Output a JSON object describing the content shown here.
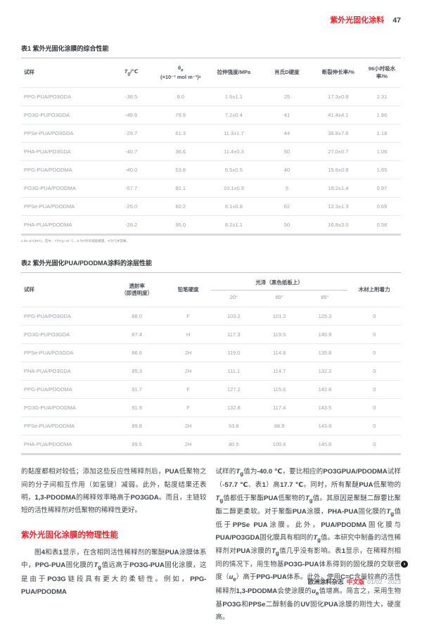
{
  "header": {
    "title": "紫外光固化涂料",
    "page_number": "47"
  },
  "table1": {
    "caption": "表1 紫外光固化涂膜的综合性能",
    "headers": [
      "试样",
      "//T//~g~/℃",
      "θ~e~\n(×10⁻³ mol m⁻³)ᵃ",
      "拉伸强度/MPa",
      "肖氏D硬度",
      "断裂伸长率/%",
      "96小时吸水率/%"
    ],
    "rows": [
      [
        "PPG-PUA/PO3GDA",
        "-38.5",
        "8.0",
        "1.6±1.1",
        "25",
        "17.3±0.9",
        "2.31"
      ],
      [
        "PO3G-PUPO3GDA",
        "-49.6",
        "79.9",
        "7.2±0.4",
        "41",
        "41.4±4.1",
        "1.96"
      ],
      [
        "PPSe-PUA/PO3GDA",
        "-29.7",
        "61.3",
        "11.3±1.7",
        "44",
        "38.8±7.8",
        "1.18"
      ],
      [
        "PHA-PUA/PO3GDA",
        "-40.7",
        "36.6",
        "11.4±0.3",
        "50",
        "27.0±0.7",
        "1.06"
      ],
      [
        "PPG-PUA/PDODMA",
        "-40.0",
        "53.8",
        "6.5±0.5",
        "40",
        "15.8±0.9",
        "1.65"
      ],
      [
        "PO3G-PUA/PDODMA",
        "-57.7",
        "82.1",
        "10.1±0.9",
        "5",
        "19.2±1.4",
        "0.97"
      ],
      [
        "PPSe-PUA/PDODMA",
        "-25.0",
        "60.2",
        "8.1±0.8",
        "62",
        "12.3±1.3",
        "0.69"
      ],
      [
        "PHA-PUA/PDODMA",
        "-26.2",
        "95.0",
        "8.2±1.1",
        "50",
        "16.8±3.0",
        "0.58"
      ]
    ],
    "footnote": "a θe=E′/(3RT)，其中，T为Tg+40 ℃，E′为T时的储能模量，R为气体常数。"
  },
  "table2": {
    "caption": "表2 紫外光固化PUA/PDODMA涂料的涂层性能",
    "headers": {
      "sample": "试样",
      "transmittance": "透射率\n（即透明度）",
      "pencil_hardness": "铅笔硬度",
      "gloss_group": "光泽（黑色纸板上）",
      "gloss_angles": [
        "20°",
        "60°",
        "85°"
      ],
      "adhesion": "木材上附着力"
    },
    "rows": [
      [
        "PPG-PUA/PO3GDA",
        "88.0",
        "F",
        "103.2",
        "101.2",
        "125.3",
        "0"
      ],
      [
        "PO3G-PUPO3GDA",
        "87.4",
        "H",
        "117.3",
        "119.5",
        "145.9",
        "0"
      ],
      [
        "PPSe-PUA/PO3GDA",
        "86.6",
        "2H",
        "119.0",
        "114.8",
        "135.8",
        "0"
      ],
      [
        "PHA-PUA/PO3GDA",
        "85.3",
        "2H",
        "111.1",
        "114.7",
        "132.2",
        "0"
      ],
      [
        "PPG-PUA/PDODMA",
        "91.7",
        "F",
        "127.2",
        "115.6",
        "142.8",
        "0"
      ],
      [
        "PO3G-PUA/PDODMA",
        "91.9",
        "F",
        "132.8",
        "117.4",
        "143.5",
        "0"
      ],
      [
        "PPSe-PUA/PDODMA",
        "89.8",
        "2H",
        "53.8",
        "88.9",
        "143.6",
        "0"
      ],
      [
        "PHA-PUA/PDODMA",
        "89.5",
        "2H",
        "80.5",
        "100.6",
        "145.6",
        "0"
      ]
    ]
  },
  "article": {
    "para1": "的黏度都相对较低；添加这些反应性稀释剂后，**PUA**低聚物之间的分子间相互作用（如氢键）减弱。此外，黏度结果还表明，**1,3-PDODMA**的稀释效率略高于**PO3GDA**。而且，主链较短的活性稀释剂对低聚物的稀释性更好。",
    "heading": "紫外光固化涂膜的物理性能",
    "para2": "图**4**和表**1**显示，在含相同活性稀释剂的聚醚**PUA**涂膜体系中，**PPG-PUA**固化膜的**//T//~g~**值远高于**PO3G-PUA**固化涂膜，这是由于**PO3G**链段具有更大的柔韧性。例如，**PPG-PUA/PDODMA**",
    "para3": "试样的**//T//~g~**值为**-40.0 ℃**，要比相应的**PO3GPUA/PDODMA**试样（**-57.7 ℃**、表**1**）高**17.7 ℃**。同时，所有聚醚**PUA**低聚物的**//T//~g~**值都低于聚酯**PUA**低聚物的**//T//~g~**值。其原因是聚醚二醇要比聚酯二醇更柔软。对于聚酯**PUA**涂膜，**PHA-PUA**固化膜的**//T//~g~**值低于**PPSe PUA**涂膜。此外，**PUA/PDODMA**固化膜与**PUA/PO3GDA**固化膜具有相同的**//T//~g~**值。本研究中制备的活性稀释剂对**PUA**涂膜的**//T//~g~**值几乎没有影响。表**1**显示，在稀释剂相同的情况下，用生物基**PO3G-PUA**体系得到的固化膜的交联密度（**//u//~e~**）高于**PPG-PUA**体系。此外，使用**C=C**含量较高的活性稀释剂**1,3-PDODMA**会使涂膜的**//u//~e~**值增高。简言之，采用生物基**PO3G**和**PPSe**二醇制备的**UV**固化**PUA**涂膜的刚性大，硬度高。"
  },
  "footer": {
    "journal": "欧洲涂料杂志",
    "edition": "中文版",
    "issue": "01/02 - 2023"
  },
  "icons": {
    "end_marker": "›"
  }
}
